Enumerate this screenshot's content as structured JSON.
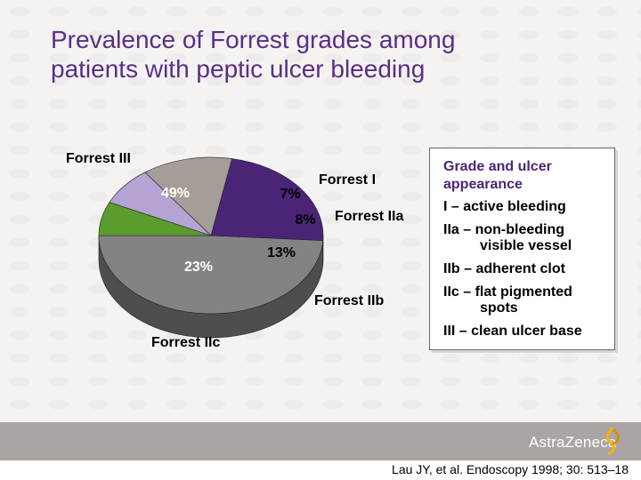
{
  "title": {
    "line1": "Prevalence of Forrest grades among",
    "line2": "patients with peptic ulcer bleeding"
  },
  "chart_data": {
    "type": "pie",
    "title": "Prevalence of Forrest grades among patients with peptic ulcer bleeding",
    "slices": [
      {
        "label": "Forrest III",
        "value": 49,
        "display": "49%",
        "color": "#838383",
        "side_color": "#4e4e4e"
      },
      {
        "label": "Forrest I",
        "value": 7,
        "display": "7%",
        "color": "#5a9c2e",
        "side_color": "#2f5e14"
      },
      {
        "label": "Forrest IIa",
        "value": 8,
        "display": "8%",
        "color": "#b4a3d3",
        "side_color": "#6c5f86"
      },
      {
        "label": "Forrest IIb",
        "value": 13,
        "display": "13%",
        "color": "#a59e98",
        "side_color": "#6b6560"
      },
      {
        "label": "Forrest IIc",
        "value": 23,
        "display": "23%",
        "color": "#4b2478",
        "side_color": "#2a1048"
      }
    ]
  },
  "legend": {
    "heading_line1": "Grade and ulcer",
    "heading_line2": "appearance",
    "items": [
      {
        "line1": "I  – active bleeding",
        "line2": ""
      },
      {
        "line1": "IIa – non-bleeding",
        "line2": "visible vessel"
      },
      {
        "line1": "IIb – adherent clot",
        "line2": ""
      },
      {
        "line1": "IIc – flat pigmented",
        "line2": "spots"
      },
      {
        "line1": "III  – clean ulcer base",
        "line2": ""
      }
    ]
  },
  "footer": {
    "brand": "AstraZeneca",
    "brand_icon": "astrazeneca-logo-icon",
    "citation": "Lau JY, et al. Endoscopy 1998; 30: 513–18"
  }
}
